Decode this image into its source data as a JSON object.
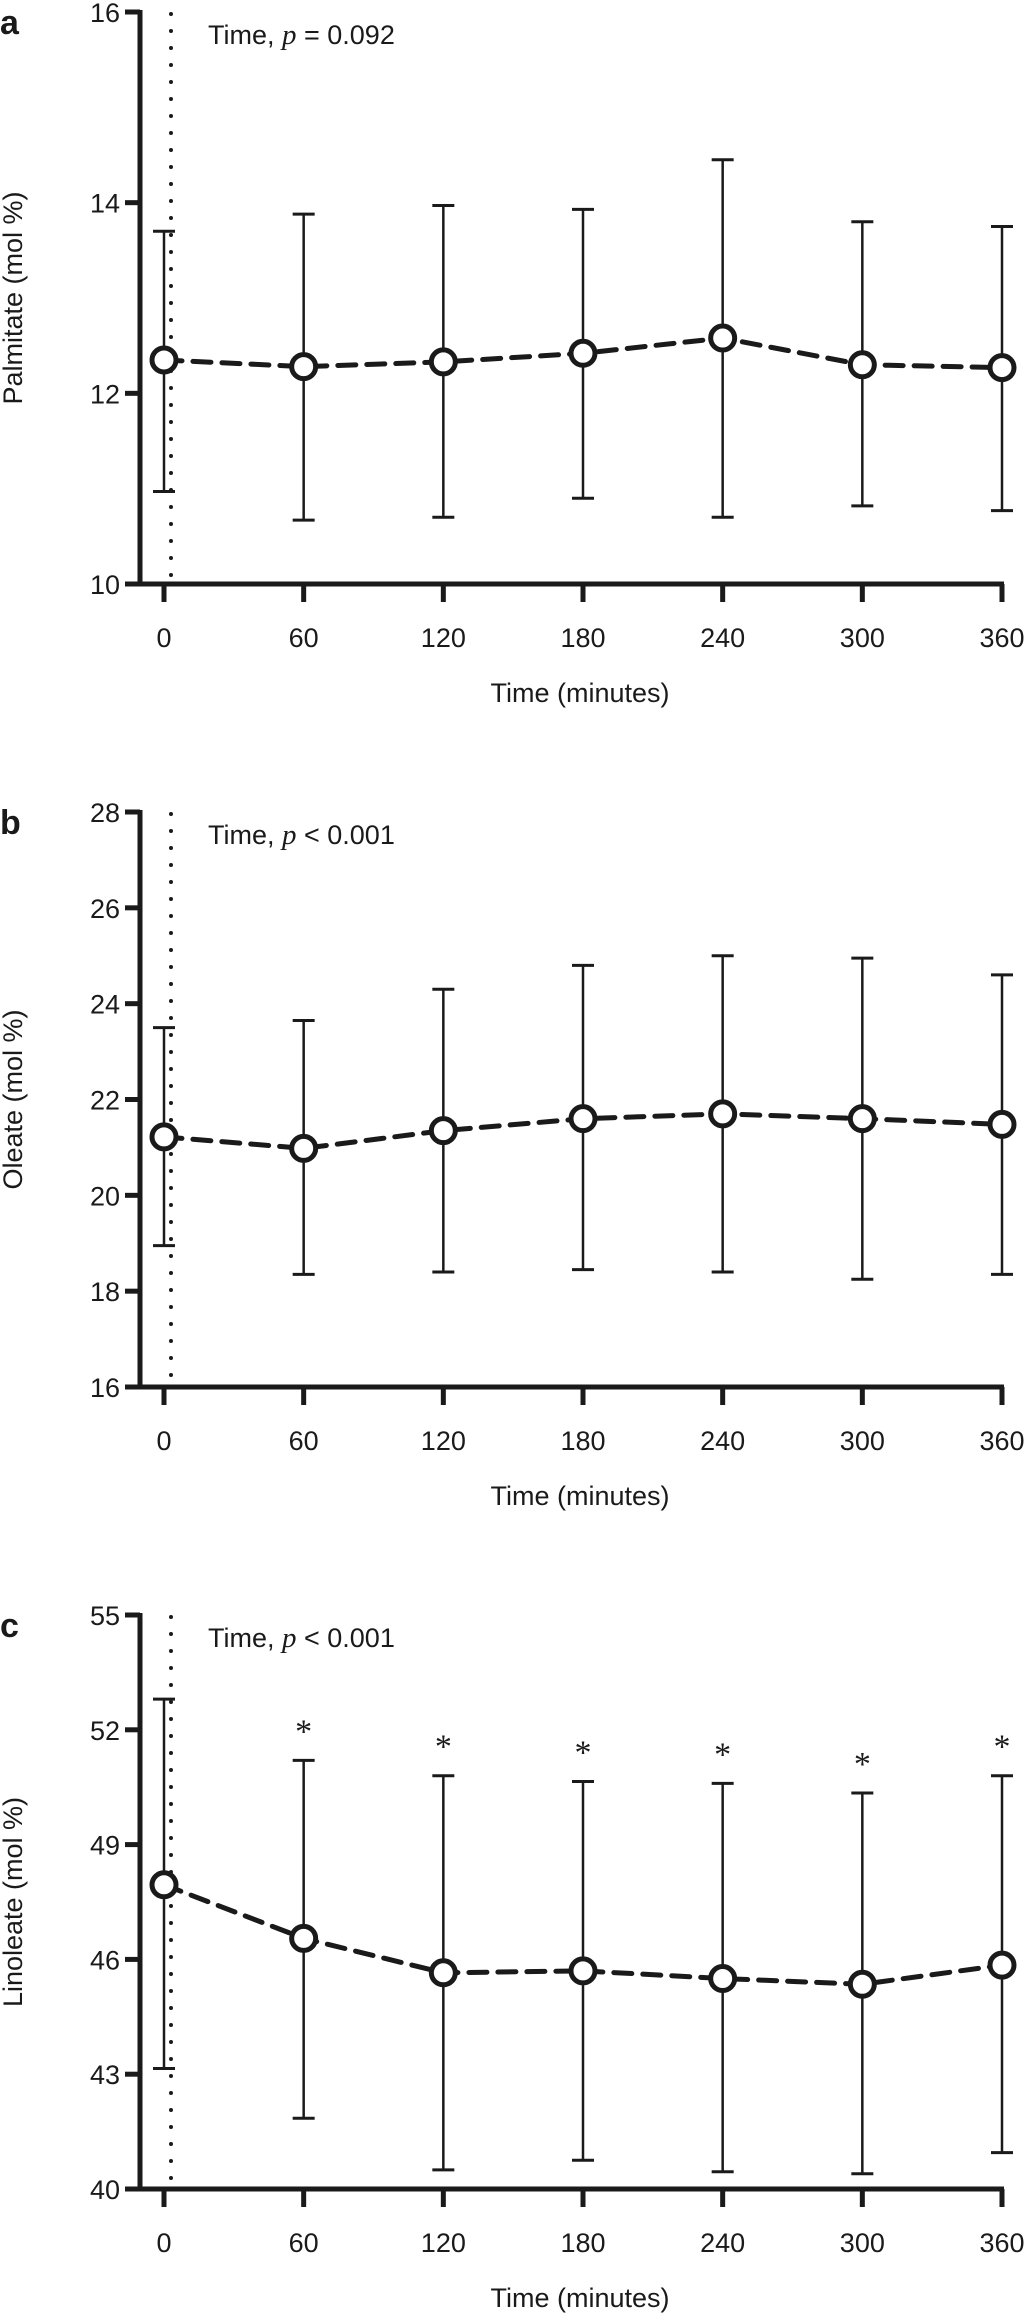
{
  "chart_data": [
    {
      "type": "line",
      "panel": "a",
      "title": "",
      "annotation": {
        "prefix": "Time, ",
        "p": "p",
        "rest": " = 0.092"
      },
      "xlabel": "Time (minutes)",
      "ylabel": "Palmitate (mol %)",
      "x": [
        0,
        60,
        120,
        180,
        240,
        300,
        360
      ],
      "xticks": [
        "0",
        "60",
        "120",
        "180",
        "240",
        "300",
        "360"
      ],
      "ylim": [
        10,
        16
      ],
      "yticks": [
        "10",
        "12",
        "14",
        "16"
      ],
      "series": [
        {
          "name": "Palmitate",
          "values": [
            12.35,
            12.28,
            12.33,
            12.42,
            12.58,
            12.3,
            12.27
          ],
          "err_low": [
            10.97,
            10.67,
            10.7,
            10.9,
            10.7,
            10.82,
            10.77
          ],
          "err_high": [
            13.7,
            13.88,
            13.97,
            13.93,
            14.45,
            13.8,
            13.75
          ]
        }
      ],
      "significance": [
        "",
        "",
        "",
        "",
        "",
        "",
        ""
      ],
      "reference_line_x": 0,
      "grid": false
    },
    {
      "type": "line",
      "panel": "b",
      "title": "",
      "annotation": {
        "prefix": "Time, ",
        "p": "p",
        "rest": " < 0.001"
      },
      "xlabel": "Time (minutes)",
      "ylabel": "Oleate (mol %)",
      "x": [
        0,
        60,
        120,
        180,
        240,
        300,
        360
      ],
      "xticks": [
        "0",
        "60",
        "120",
        "180",
        "240",
        "300",
        "360"
      ],
      "ylim": [
        16,
        28
      ],
      "yticks": [
        "16",
        "18",
        "20",
        "22",
        "24",
        "26",
        "28"
      ],
      "series": [
        {
          "name": "Oleate",
          "values": [
            21.22,
            20.98,
            21.35,
            21.6,
            21.7,
            21.6,
            21.48
          ],
          "err_low": [
            18.95,
            18.35,
            18.4,
            18.45,
            18.4,
            18.25,
            18.35
          ],
          "err_high": [
            23.5,
            23.65,
            24.3,
            24.8,
            25.0,
            24.95,
            24.6
          ]
        }
      ],
      "significance": [
        "",
        "",
        "",
        "",
        "",
        "",
        ""
      ],
      "reference_line_x": 0,
      "grid": false
    },
    {
      "type": "line",
      "panel": "c",
      "title": "",
      "annotation": {
        "prefix": "Time, ",
        "p": "p",
        "rest": " < 0.001"
      },
      "xlabel": "Time (minutes)",
      "ylabel": "Linoleate (mol %)",
      "x": [
        0,
        60,
        120,
        180,
        240,
        300,
        360
      ],
      "xticks": [
        "0",
        "60",
        "120",
        "180",
        "240",
        "300",
        "360"
      ],
      "ylim": [
        40,
        55
      ],
      "yticks": [
        "40",
        "43",
        "46",
        "49",
        "52",
        "55"
      ],
      "series": [
        {
          "name": "Linoleate",
          "values": [
            47.95,
            46.55,
            45.65,
            45.7,
            45.5,
            45.35,
            45.85
          ],
          "err_low": [
            43.15,
            41.85,
            40.5,
            40.75,
            40.45,
            40.4,
            40.95
          ],
          "err_high": [
            52.8,
            51.2,
            50.8,
            50.65,
            50.6,
            50.35,
            50.8
          ]
        }
      ],
      "significance": [
        "",
        "*",
        "*",
        "*",
        "*",
        "*",
        "*"
      ],
      "reference_line_x": 0,
      "grid": false
    }
  ],
  "colors": {
    "ink": "#1a1a1a",
    "background": "#ffffff"
  }
}
